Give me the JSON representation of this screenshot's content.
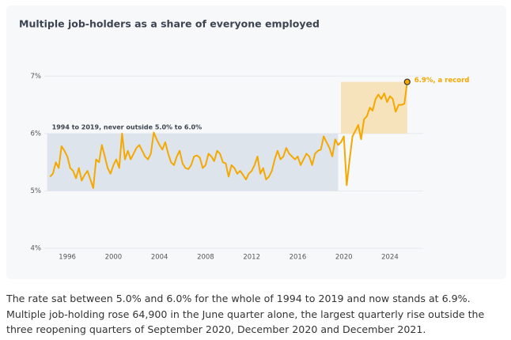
{
  "chart_data": {
    "type": "line",
    "title": "Multiple job-holders as a share of everyone employed",
    "x": [
      1994.5,
      1994.75,
      1995,
      1995.25,
      1995.5,
      1995.75,
      1996,
      1996.25,
      1996.5,
      1996.75,
      1997,
      1997.25,
      1997.5,
      1997.75,
      1998,
      1998.25,
      1998.5,
      1998.75,
      1999,
      1999.25,
      1999.5,
      1999.75,
      2000,
      2000.25,
      2000.5,
      2000.75,
      2001,
      2001.25,
      2001.5,
      2001.75,
      2002,
      2002.25,
      2002.5,
      2002.75,
      2003,
      2003.25,
      2003.5,
      2003.75,
      2004,
      2004.25,
      2004.5,
      2004.75,
      2005,
      2005.25,
      2005.5,
      2005.75,
      2006,
      2006.25,
      2006.5,
      2006.75,
      2007,
      2007.25,
      2007.5,
      2007.75,
      2008,
      2008.25,
      2008.5,
      2008.75,
      2009,
      2009.25,
      2009.5,
      2009.75,
      2010,
      2010.25,
      2010.5,
      2010.75,
      2011,
      2011.25,
      2011.5,
      2011.75,
      2012,
      2012.25,
      2012.5,
      2012.75,
      2013,
      2013.25,
      2013.5,
      2013.75,
      2014,
      2014.25,
      2014.5,
      2014.75,
      2015,
      2015.25,
      2015.5,
      2015.75,
      2016,
      2016.25,
      2016.5,
      2016.75,
      2017,
      2017.25,
      2017.5,
      2017.75,
      2018,
      2018.25,
      2018.5,
      2018.75,
      2019,
      2019.25,
      2019.5,
      2019.75,
      2020,
      2020.25,
      2020.5,
      2020.75,
      2021,
      2021.25,
      2021.5,
      2021.75,
      2022,
      2022.25,
      2022.5,
      2022.75,
      2023,
      2023.25,
      2023.5,
      2023.75,
      2024,
      2024.25,
      2024.5,
      2024.75,
      2025,
      2025.25,
      2025.5
    ],
    "values": [
      5.25,
      5.3,
      5.5,
      5.4,
      5.78,
      5.7,
      5.6,
      5.4,
      5.35,
      5.22,
      5.4,
      5.18,
      5.28,
      5.35,
      5.2,
      5.05,
      5.55,
      5.5,
      5.8,
      5.6,
      5.4,
      5.3,
      5.45,
      5.55,
      5.4,
      6.0,
      5.55,
      5.7,
      5.55,
      5.65,
      5.75,
      5.8,
      5.7,
      5.6,
      5.55,
      5.65,
      6.02,
      5.9,
      5.8,
      5.72,
      5.85,
      5.65,
      5.5,
      5.45,
      5.6,
      5.7,
      5.48,
      5.4,
      5.38,
      5.45,
      5.6,
      5.62,
      5.58,
      5.4,
      5.45,
      5.65,
      5.6,
      5.52,
      5.7,
      5.65,
      5.5,
      5.48,
      5.25,
      5.45,
      5.4,
      5.3,
      5.35,
      5.28,
      5.2,
      5.3,
      5.35,
      5.45,
      5.6,
      5.3,
      5.4,
      5.2,
      5.25,
      5.35,
      5.55,
      5.7,
      5.55,
      5.6,
      5.75,
      5.65,
      5.6,
      5.55,
      5.6,
      5.45,
      5.55,
      5.65,
      5.6,
      5.45,
      5.65,
      5.7,
      5.72,
      5.95,
      5.85,
      5.75,
      5.6,
      5.9,
      5.8,
      5.85,
      5.95,
      5.1,
      5.55,
      5.95,
      6.05,
      6.15,
      5.9,
      6.25,
      6.3,
      6.45,
      6.4,
      6.6,
      6.68,
      6.6,
      6.7,
      6.55,
      6.65,
      6.6,
      6.38,
      6.5,
      6.5,
      6.52,
      6.9
    ],
    "color": "#f5a800",
    "xlim": [
      1994,
      2026.2
    ],
    "xticks": [
      1996,
      2000,
      2004,
      2008,
      2012,
      2016,
      2020,
      2024
    ],
    "ylim": [
      3.85,
      7.5
    ],
    "yticks": [
      {
        "value": 4,
        "label": "4%"
      },
      {
        "value": 5,
        "label": "5%"
      },
      {
        "value": 6,
        "label": "6%"
      },
      {
        "value": 7,
        "label": "7%"
      }
    ],
    "grid": true,
    "bands": [
      {
        "label": "1994 to 2019, never outside 5.0% to 6.0%",
        "x": [
          1994.25,
          2019.5
        ],
        "y": [
          5,
          6
        ],
        "color": "#dde4ec"
      },
      {
        "x": [
          2019.75,
          2025.5
        ],
        "y": [
          6,
          6.9
        ],
        "color": "#f7e3bb"
      }
    ],
    "annotation": {
      "text": "6.9%, a record",
      "index": 124
    },
    "caption": "The rate sat between 5.0% and 6.0% for the whole of 1994 to 2019 and now stands at 6.9%. Multiple job-holding rose 64,900 in the June quarter alone, the largest quarterly rise outside the three reopening quarters of September 2020, December 2020 and December 2021."
  }
}
